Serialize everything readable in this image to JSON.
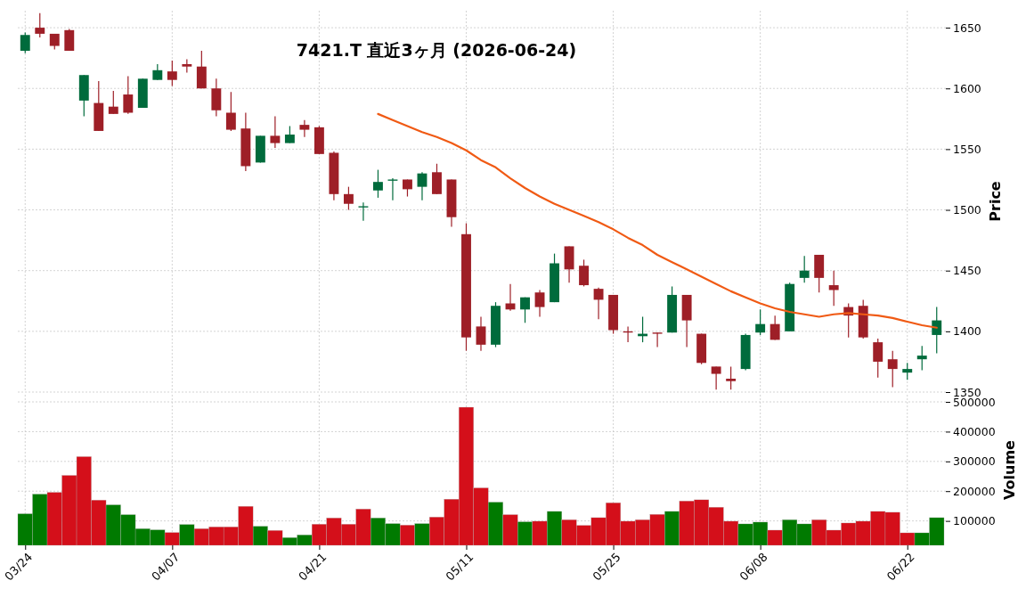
{
  "chart_data": [
    {
      "type": "candlestick",
      "title": "7421.T  直近3ヶ月  (2026-06-24)",
      "ylabel": "Price",
      "categories": [
        null,
        null,
        null,
        null,
        null,
        null,
        null,
        null,
        null,
        null,
        null,
        null,
        null,
        null,
        null,
        null,
        null,
        null,
        null,
        null,
        null,
        null,
        null,
        null,
        null,
        null,
        null,
        null,
        null,
        null,
        null,
        null,
        null,
        null,
        null,
        null,
        null,
        null,
        null,
        null,
        null,
        null,
        null,
        null,
        null,
        null,
        null,
        null,
        null,
        null,
        null,
        null,
        null,
        null,
        null,
        null,
        null,
        null,
        null,
        null,
        null,
        null,
        null
      ],
      "ohlc": [
        [
          1631,
          1646,
          1629,
          1644
        ],
        [
          1650,
          1662,
          1642,
          1645
        ],
        [
          1645,
          1645,
          1632,
          1635
        ],
        [
          1648,
          1649,
          1631,
          1631
        ],
        [
          1590,
          1611,
          1577,
          1611
        ],
        [
          1588,
          1606,
          1565,
          1565
        ],
        [
          1585,
          1598,
          1579,
          1579
        ],
        [
          1595,
          1610,
          1579,
          1580
        ],
        [
          1584,
          1608,
          1584,
          1608
        ],
        [
          1607,
          1620,
          1607,
          1615
        ],
        [
          1614,
          1623,
          1602,
          1607
        ],
        [
          1620,
          1624,
          1613,
          1618
        ],
        [
          1618,
          1631,
          1600,
          1600
        ],
        [
          1600,
          1608,
          1577,
          1582
        ],
        [
          1580,
          1597,
          1565,
          1566
        ],
        [
          1567,
          1580,
          1532,
          1536
        ],
        [
          1539,
          1561,
          1539,
          1561
        ],
        [
          1561,
          1577,
          1551,
          1555
        ],
        [
          1555,
          1569,
          1555,
          1562
        ],
        [
          1570,
          1574,
          1560,
          1566
        ],
        [
          1568,
          1569,
          1546,
          1546
        ],
        [
          1547,
          1548,
          1508,
          1513
        ],
        [
          1513,
          1519,
          1500,
          1505
        ],
        [
          1502,
          1506,
          1491,
          1503
        ],
        [
          1516,
          1533,
          1510,
          1523
        ],
        [
          1524,
          1526,
          1508,
          1525
        ],
        [
          1525,
          1525,
          1511,
          1517
        ],
        [
          1519,
          1531,
          1508,
          1530
        ],
        [
          1531,
          1538,
          1513,
          1513
        ],
        [
          1525,
          1525,
          1486,
          1494
        ],
        [
          1480,
          1489,
          1384,
          1395
        ],
        [
          1404,
          1412,
          1384,
          1389
        ],
        [
          1389,
          1424,
          1387,
          1421
        ],
        [
          1423,
          1439,
          1417,
          1418
        ],
        [
          1418,
          1428,
          1407,
          1428
        ],
        [
          1432,
          1434,
          1412,
          1420
        ],
        [
          1424,
          1464,
          1424,
          1456
        ],
        [
          1470,
          1470,
          1440,
          1451
        ],
        [
          1454,
          1459,
          1437,
          1438
        ],
        [
          1435,
          1436,
          1410,
          1426
        ],
        [
          1430,
          1430,
          1398,
          1401
        ],
        [
          1400,
          1404,
          1391,
          1399
        ],
        [
          1396,
          1412,
          1391,
          1398
        ],
        [
          1399,
          1399,
          1387,
          1398
        ],
        [
          1399,
          1437,
          1399,
          1430
        ],
        [
          1430,
          1430,
          1387,
          1409
        ],
        [
          1398,
          1398,
          1373,
          1374
        ],
        [
          1371,
          1371,
          1352,
          1365
        ],
        [
          1361,
          1371,
          1352,
          1359
        ],
        [
          1369,
          1398,
          1368,
          1397
        ],
        [
          1399,
          1418,
          1397,
          1406
        ],
        [
          1406,
          1413,
          1393,
          1393
        ],
        [
          1400,
          1440,
          1400,
          1439
        ],
        [
          1444,
          1462,
          1440,
          1450
        ],
        [
          1463,
          1463,
          1432,
          1444
        ],
        [
          1438,
          1450,
          1421,
          1434
        ],
        [
          1420,
          1423,
          1395,
          1413
        ],
        [
          1421,
          1426,
          1394,
          1395
        ],
        [
          1391,
          1394,
          1362,
          1375
        ],
        [
          1377,
          1384,
          1354,
          1369
        ],
        [
          1366,
          1374,
          1360,
          1369
        ],
        [
          1377,
          1388,
          1368,
          1380
        ],
        [
          1397,
          1420,
          1382,
          1409
        ]
      ],
      "colors": [
        "#006b3c",
        "#9e1f27",
        "#9e1f27",
        "#9e1f27",
        "#006b3c",
        "#9e1f27",
        "#9e1f27",
        "#9e1f27",
        "#006b3c",
        "#006b3c",
        "#9e1f27",
        "#9e1f27",
        "#9e1f27",
        "#9e1f27",
        "#9e1f27",
        "#9e1f27",
        "#006b3c",
        "#9e1f27",
        "#006b3c",
        "#9e1f27",
        "#9e1f27",
        "#9e1f27",
        "#9e1f27",
        "#006b3c",
        "#006b3c",
        "#006b3c",
        "#9e1f27",
        "#006b3c",
        "#9e1f27",
        "#9e1f27",
        "#9e1f27",
        "#9e1f27",
        "#006b3c",
        "#9e1f27",
        "#006b3c",
        "#9e1f27",
        "#006b3c",
        "#9e1f27",
        "#9e1f27",
        "#9e1f27",
        "#9e1f27",
        "#9e1f27",
        "#006b3c",
        "#9e1f27",
        "#006b3c",
        "#9e1f27",
        "#9e1f27",
        "#9e1f27",
        "#9e1f27",
        "#006b3c",
        "#006b3c",
        "#9e1f27",
        "#006b3c",
        "#006b3c",
        "#9e1f27",
        "#9e1f27",
        "#9e1f27",
        "#9e1f27",
        "#9e1f27",
        "#9e1f27",
        "#006b3c",
        "#006b3c",
        "#006b3c"
      ],
      "series": [
        {
          "type": "line",
          "color": "#f05a14",
          "values": [
            null,
            null,
            null,
            null,
            null,
            null,
            null,
            null,
            null,
            null,
            null,
            null,
            null,
            null,
            null,
            null,
            null,
            null,
            null,
            null,
            null,
            null,
            null,
            null,
            1579,
            1574,
            1569,
            1564,
            1560,
            1555,
            1549,
            1541,
            1535,
            1526,
            1518,
            1511,
            1505,
            1500,
            1495,
            1490,
            1484,
            1477,
            1471,
            1463,
            1457,
            1451,
            1445,
            1439,
            1433,
            1428,
            1423,
            1419,
            1416,
            1414,
            1412,
            1414,
            1415,
            1414,
            1413,
            1411,
            1408,
            1405,
            1403
          ]
        }
      ],
      "ylim": [
        1350,
        1664
      ],
      "yticks": [
        1350,
        1400,
        1450,
        1500,
        1550,
        1600,
        1650
      ],
      "grid": true,
      "tick_labels": "y",
      "line_style": "solid",
      "marker": "none"
    },
    {
      "type": "bar",
      "ylabel": "Volume",
      "categories": [
        "03/24",
        null,
        null,
        null,
        null,
        null,
        null,
        null,
        null,
        null,
        "04/07",
        null,
        null,
        null,
        null,
        null,
        null,
        null,
        null,
        null,
        "04/21",
        null,
        null,
        null,
        null,
        null,
        null,
        null,
        null,
        null,
        "05/11",
        null,
        null,
        null,
        null,
        null,
        null,
        null,
        null,
        null,
        "05/25",
        null,
        null,
        null,
        null,
        null,
        null,
        null,
        null,
        null,
        "06/08",
        null,
        null,
        null,
        null,
        null,
        null,
        null,
        null,
        null,
        "06/22",
        null,
        null
      ],
      "values": [
        124000,
        190000,
        196000,
        253000,
        316000,
        170000,
        154000,
        121000,
        74000,
        70000,
        61000,
        88000,
        74000,
        80000,
        80000,
        149000,
        82000,
        68000,
        44000,
        53000,
        89000,
        110000,
        89000,
        140000,
        110000,
        91000,
        86000,
        91000,
        113000,
        173000,
        482000,
        211000,
        163000,
        121000,
        97000,
        99000,
        132000,
        104000,
        85000,
        111000,
        161000,
        99000,
        104000,
        122000,
        132000,
        167000,
        171000,
        146000,
        99000,
        90000,
        96000,
        69000,
        104000,
        90000,
        104000,
        69000,
        93000,
        99000,
        132000,
        129000,
        60000,
        60000,
        111000
      ],
      "colors": [
        "#007a00",
        "#007a00",
        "#d40f1a",
        "#d40f1a",
        "#d40f1a",
        "#d40f1a",
        "#007a00",
        "#007a00",
        "#007a00",
        "#007a00",
        "#d40f1a",
        "#007a00",
        "#d40f1a",
        "#d40f1a",
        "#d40f1a",
        "#d40f1a",
        "#007a00",
        "#d40f1a",
        "#007a00",
        "#007a00",
        "#d40f1a",
        "#d40f1a",
        "#d40f1a",
        "#d40f1a",
        "#007a00",
        "#007a00",
        "#d40f1a",
        "#007a00",
        "#d40f1a",
        "#d40f1a",
        "#d40f1a",
        "#d40f1a",
        "#007a00",
        "#d40f1a",
        "#007a00",
        "#d40f1a",
        "#007a00",
        "#d40f1a",
        "#d40f1a",
        "#d40f1a",
        "#d40f1a",
        "#d40f1a",
        "#d40f1a",
        "#d40f1a",
        "#007a00",
        "#d40f1a",
        "#d40f1a",
        "#d40f1a",
        "#d40f1a",
        "#007a00",
        "#007a00",
        "#d40f1a",
        "#007a00",
        "#007a00",
        "#d40f1a",
        "#d40f1a",
        "#d40f1a",
        "#d40f1a",
        "#d40f1a",
        "#d40f1a",
        "#d40f1a",
        "#007a00",
        "#007a00"
      ],
      "ylim": [
        18000,
        524000
      ],
      "yticks": [
        100000,
        200000,
        300000,
        400000,
        500000
      ],
      "grid": true
    }
  ]
}
